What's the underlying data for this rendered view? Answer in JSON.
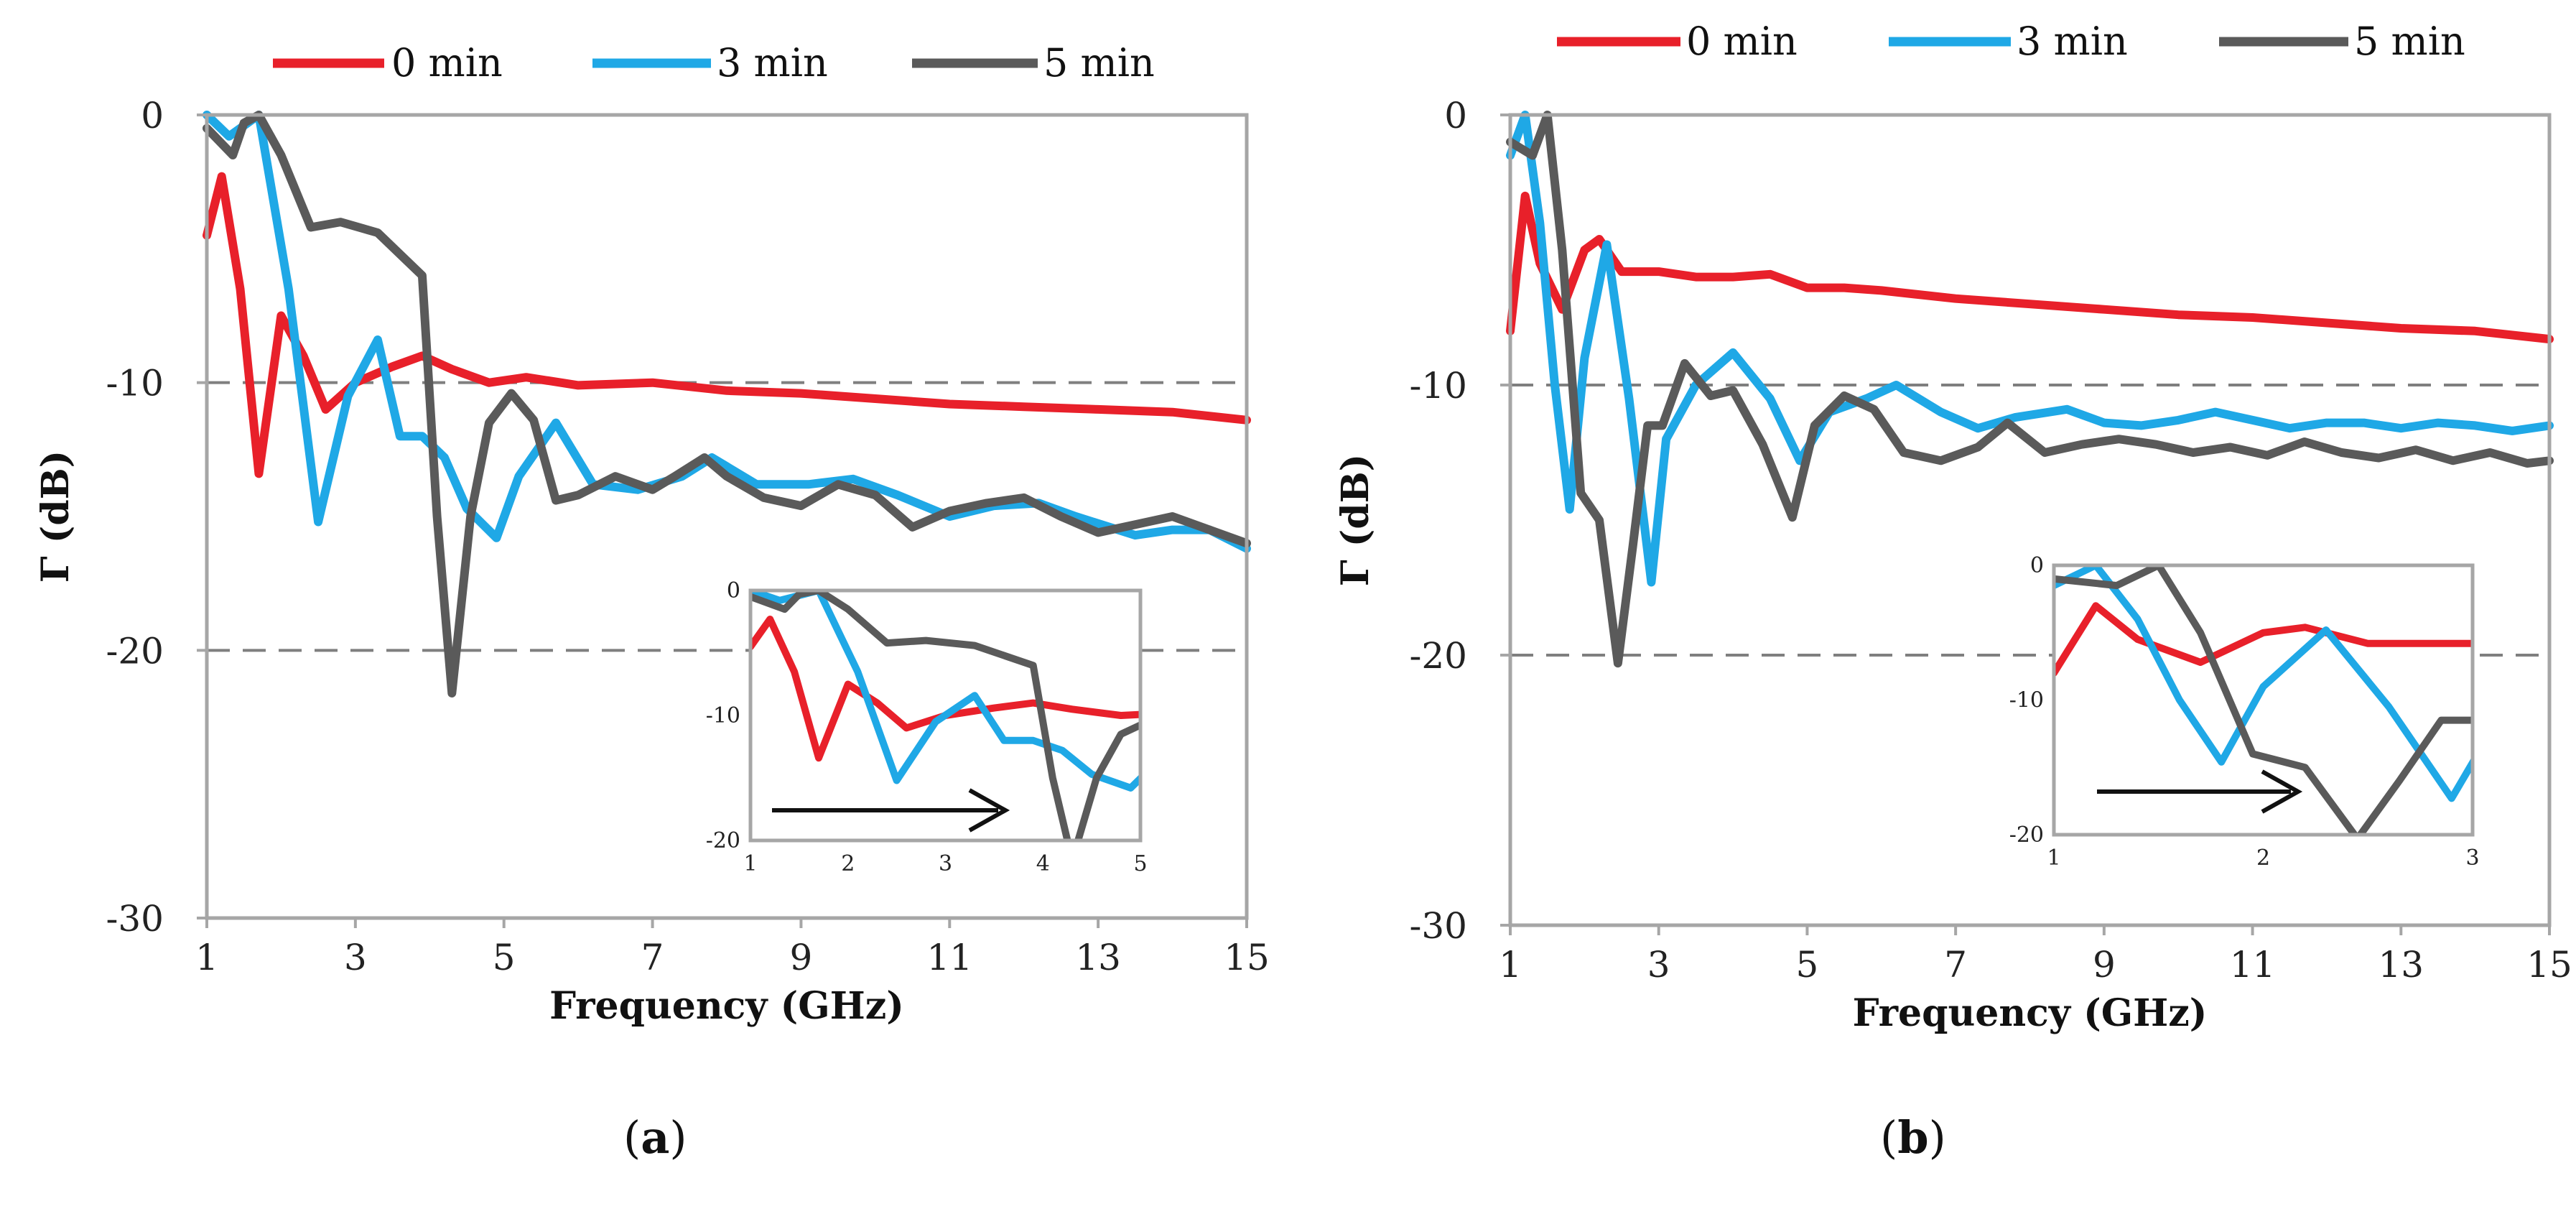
{
  "colors": {
    "s0": "#e8202a",
    "s3": "#1fa8e6",
    "s5": "#5a5a5a",
    "frame": "#a6a6a6",
    "ref": "#7f7f7f",
    "arrow": "#111111"
  },
  "legend": [
    "0 min",
    "3 min",
    "5 min"
  ],
  "captions": {
    "a": "a",
    "b": "b"
  },
  "chart_data": [
    {
      "id": "a",
      "type": "line",
      "xlabel": "Frequency (GHz)",
      "ylabel": "Γ (dB)",
      "xlim": [
        1,
        15
      ],
      "ylim": [
        -30,
        0
      ],
      "xticks": [
        1,
        3,
        5,
        7,
        9,
        11,
        13,
        15
      ],
      "yticks": [
        0,
        -10,
        -20,
        -30
      ],
      "reference_lines": [
        -10,
        -20
      ],
      "series": [
        {
          "name": "0 min",
          "x": [
            1,
            1.2,
            1.45,
            1.7,
            2.0,
            2.3,
            2.6,
            3.0,
            3.5,
            3.9,
            4.3,
            4.8,
            5.3,
            6,
            7,
            8,
            9,
            10,
            11,
            12,
            13,
            14,
            15
          ],
          "y": [
            -4.5,
            -2.3,
            -6.5,
            -13.4,
            -7.5,
            -9,
            -11,
            -10,
            -9.4,
            -9,
            -9.5,
            -10,
            -9.8,
            -10.1,
            -10,
            -10.3,
            -10.4,
            -10.6,
            -10.8,
            -10.9,
            -11,
            -11.1,
            -11.4
          ]
        },
        {
          "name": "3 min",
          "x": [
            1,
            1.3,
            1.7,
            2.1,
            2.5,
            2.9,
            3.3,
            3.6,
            3.9,
            4.2,
            4.5,
            4.9,
            5.2,
            5.7,
            6.2,
            6.8,
            7.4,
            7.8,
            8.4,
            9.1,
            9.7,
            10.3,
            11,
            11.6,
            12.2,
            12.7,
            13.5,
            14,
            14.5,
            15
          ],
          "y": [
            0,
            -0.8,
            0,
            -6.5,
            -15.2,
            -10.5,
            -8.4,
            -12,
            -12,
            -12.8,
            -14.7,
            -15.8,
            -13.5,
            -11.5,
            -13.8,
            -14,
            -13.5,
            -12.8,
            -13.8,
            -13.8,
            -13.6,
            -14.2,
            -15,
            -14.6,
            -14.5,
            -15,
            -15.7,
            -15.5,
            -15.5,
            -16.2
          ]
        },
        {
          "name": "5 min",
          "x": [
            1,
            1.35,
            1.5,
            1.7,
            2.0,
            2.4,
            2.8,
            3.3,
            3.9,
            4.1,
            4.3,
            4.55,
            4.8,
            5.1,
            5.4,
            5.7,
            6.0,
            6.5,
            7.0,
            7.3,
            7.7,
            8.0,
            8.5,
            9.0,
            9.5,
            10,
            10.5,
            11,
            11.5,
            12,
            12.5,
            13,
            13.5,
            14,
            14.5,
            15
          ],
          "y": [
            -0.5,
            -1.5,
            -0.3,
            0,
            -1.5,
            -4.2,
            -4,
            -4.4,
            -6,
            -15,
            -21.6,
            -15,
            -11.5,
            -10.4,
            -11.4,
            -14.4,
            -14.2,
            -13.5,
            -14,
            -13.5,
            -12.8,
            -13.5,
            -14.3,
            -14.6,
            -13.8,
            -14.2,
            -15.4,
            -14.8,
            -14.5,
            -14.3,
            -15,
            -15.6,
            -15.3,
            -15,
            -15.5,
            -16
          ]
        }
      ],
      "inset": {
        "xlim": [
          1,
          5
        ],
        "ylim": [
          -20,
          0
        ],
        "xticks": [
          1,
          2,
          3,
          4,
          5
        ],
        "yticks": [
          0,
          -10,
          -20
        ]
      }
    },
    {
      "id": "b",
      "type": "line",
      "xlabel": "Frequency (GHz)",
      "ylabel": "Γ (dB)",
      "xlim": [
        1,
        15
      ],
      "ylim": [
        -30,
        0
      ],
      "xticks": [
        1,
        3,
        5,
        7,
        9,
        11,
        13,
        15
      ],
      "yticks": [
        0,
        -10,
        -20,
        -30
      ],
      "reference_lines": [
        -10,
        -20
      ],
      "series": [
        {
          "name": "0 min",
          "x": [
            1,
            1.2,
            1.4,
            1.7,
            2.0,
            2.2,
            2.5,
            3.0,
            3.5,
            4.0,
            4.5,
            5.0,
            5.5,
            6,
            7,
            8,
            9,
            10,
            11,
            12,
            13,
            14,
            15
          ],
          "y": [
            -8,
            -3,
            -5.5,
            -7.2,
            -5,
            -4.6,
            -5.8,
            -5.8,
            -6,
            -6,
            -5.9,
            -6.4,
            -6.4,
            -6.5,
            -6.8,
            -7,
            -7.2,
            -7.4,
            -7.5,
            -7.7,
            -7.9,
            -8,
            -8.3
          ]
        },
        {
          "name": "3 min",
          "x": [
            1,
            1.2,
            1.4,
            1.6,
            1.8,
            2.0,
            2.3,
            2.6,
            2.9,
            3.1,
            3.5,
            4.0,
            4.5,
            4.9,
            5.3,
            5.8,
            6.2,
            6.8,
            7.3,
            7.8,
            8.5,
            9.0,
            9.5,
            10,
            10.5,
            11,
            11.5,
            12,
            12.5,
            13,
            13.5,
            14,
            14.5,
            15
          ],
          "y": [
            -1.5,
            0,
            -4,
            -10,
            -14.6,
            -9,
            -4.8,
            -10.5,
            -17.3,
            -12,
            -10,
            -8.8,
            -10.5,
            -12.8,
            -11,
            -10.5,
            -10,
            -11,
            -11.6,
            -11.2,
            -10.9,
            -11.4,
            -11.5,
            -11.3,
            -11,
            -11.3,
            -11.6,
            -11.4,
            -11.4,
            -11.6,
            -11.4,
            -11.5,
            -11.7,
            -11.5
          ]
        },
        {
          "name": "5 min",
          "x": [
            1,
            1.3,
            1.5,
            1.7,
            1.95,
            2.2,
            2.45,
            2.65,
            2.85,
            3.05,
            3.35,
            3.7,
            4.0,
            4.4,
            4.8,
            5.1,
            5.5,
            5.9,
            6.3,
            6.8,
            7.3,
            7.7,
            8.2,
            8.7,
            9.2,
            9.7,
            10.2,
            10.7,
            11.2,
            11.7,
            12.2,
            12.7,
            13.2,
            13.7,
            14.2,
            14.7,
            15
          ],
          "y": [
            -1,
            -1.5,
            0,
            -5,
            -14,
            -15,
            -20.3,
            -16,
            -11.5,
            -11.5,
            -9.2,
            -10.4,
            -10.2,
            -12.2,
            -14.9,
            -11.5,
            -10.4,
            -10.9,
            -12.5,
            -12.8,
            -12.3,
            -11.4,
            -12.5,
            -12.2,
            -12,
            -12.2,
            -12.5,
            -12.3,
            -12.6,
            -12.1,
            -12.5,
            -12.7,
            -12.4,
            -12.8,
            -12.5,
            -12.9,
            -12.8
          ]
        }
      ],
      "inset": {
        "xlim": [
          1,
          3
        ],
        "ylim": [
          -20,
          0
        ],
        "xticks": [
          1,
          2,
          3
        ],
        "yticks": [
          0,
          -10,
          -20
        ]
      }
    }
  ]
}
